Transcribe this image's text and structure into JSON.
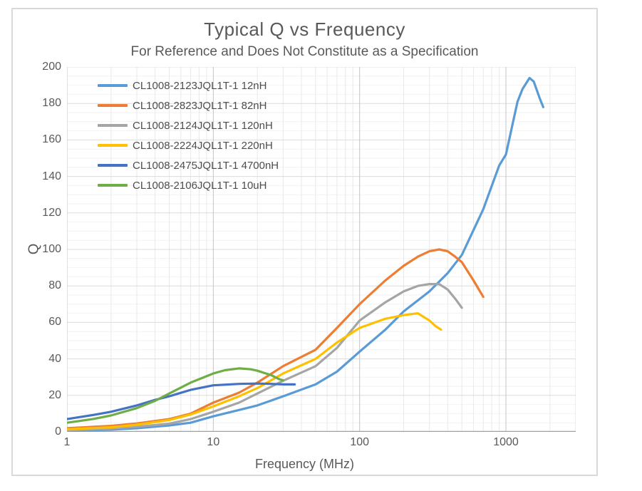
{
  "chart_data": {
    "type": "line",
    "title": "Typical Q vs Frequency",
    "subtitle": "For Reference and Does Not Constitute as a Specification",
    "xlabel": "Frequency (MHz)",
    "ylabel": "Q",
    "x_scale": "log",
    "xlim": [
      1,
      3000
    ],
    "ylim": [
      0,
      200
    ],
    "x_major_ticks": [
      1,
      10,
      100,
      1000
    ],
    "y_major_ticks": [
      0,
      20,
      40,
      60,
      80,
      100,
      120,
      140,
      160,
      180,
      200
    ],
    "y_minor_step": 5,
    "grid": true,
    "legend_position": "top-left",
    "axis_color": "#9f9f9f",
    "grid_major_h_color": "#dcdcdc",
    "grid_minor_h_color": "#f2f2f2",
    "grid_major_v_color": "#c4c4c4",
    "grid_minor_v_color": "#e9e9e9",
    "series": [
      {
        "name": "CL1008-2123JQL1T-1 12nH",
        "color": "#5B9BD5",
        "points": [
          [
            1,
            0.5
          ],
          [
            2,
            1.2
          ],
          [
            3,
            2
          ],
          [
            5,
            3.5
          ],
          [
            7,
            5
          ],
          [
            10,
            8.5
          ],
          [
            15,
            12
          ],
          [
            20,
            14.5
          ],
          [
            30,
            19.5
          ],
          [
            50,
            26
          ],
          [
            70,
            33
          ],
          [
            100,
            44
          ],
          [
            150,
            56
          ],
          [
            200,
            66
          ],
          [
            300,
            77
          ],
          [
            400,
            87
          ],
          [
            500,
            97
          ],
          [
            700,
            122
          ],
          [
            900,
            146
          ],
          [
            1000,
            152
          ],
          [
            1200,
            181
          ],
          [
            1300,
            188
          ],
          [
            1450,
            194
          ],
          [
            1550,
            192
          ],
          [
            1700,
            183
          ],
          [
            1800,
            178
          ]
        ]
      },
      {
        "name": "CL1008-2823JQL1T-1 82nH",
        "color": "#ED7D31",
        "points": [
          [
            1,
            2
          ],
          [
            2,
            3.3
          ],
          [
            3,
            4.6
          ],
          [
            5,
            7
          ],
          [
            7,
            10
          ],
          [
            10,
            16
          ],
          [
            15,
            21.5
          ],
          [
            20,
            27
          ],
          [
            30,
            36
          ],
          [
            50,
            45
          ],
          [
            70,
            57
          ],
          [
            100,
            70
          ],
          [
            150,
            83
          ],
          [
            200,
            91
          ],
          [
            250,
            96
          ],
          [
            300,
            99
          ],
          [
            350,
            100
          ],
          [
            400,
            99
          ],
          [
            450,
            96
          ],
          [
            500,
            93
          ],
          [
            600,
            83
          ],
          [
            700,
            74
          ]
        ]
      },
      {
        "name": "CL1008-2124JQL1T-1 120nH",
        "color": "#A5A5A5",
        "points": [
          [
            1,
            0.8
          ],
          [
            2,
            1.8
          ],
          [
            3,
            2.8
          ],
          [
            5,
            4.5
          ],
          [
            7,
            7
          ],
          [
            10,
            11
          ],
          [
            15,
            16
          ],
          [
            20,
            21
          ],
          [
            30,
            28
          ],
          [
            50,
            36
          ],
          [
            70,
            46
          ],
          [
            100,
            61
          ],
          [
            150,
            71
          ],
          [
            200,
            77
          ],
          [
            250,
            80
          ],
          [
            300,
            81
          ],
          [
            350,
            81
          ],
          [
            400,
            78
          ],
          [
            450,
            73
          ],
          [
            500,
            68
          ]
        ]
      },
      {
        "name": "CL1008-2224JQL1T-1 220nH",
        "color": "#FFC000",
        "points": [
          [
            1,
            1.4
          ],
          [
            2,
            2.5
          ],
          [
            3,
            3.9
          ],
          [
            5,
            6.5
          ],
          [
            7,
            9.5
          ],
          [
            10,
            14
          ],
          [
            15,
            19.5
          ],
          [
            20,
            24
          ],
          [
            30,
            32
          ],
          [
            50,
            40
          ],
          [
            70,
            49
          ],
          [
            100,
            57
          ],
          [
            150,
            62
          ],
          [
            200,
            64
          ],
          [
            250,
            65
          ],
          [
            300,
            61
          ],
          [
            330,
            58
          ],
          [
            360,
            56
          ]
        ]
      },
      {
        "name": "CL1008-2475JQL1T-1 4700nH",
        "color": "#4472C4",
        "points": [
          [
            1,
            7
          ],
          [
            1.5,
            9.2
          ],
          [
            2,
            11
          ],
          [
            3,
            14.5
          ],
          [
            4,
            17.5
          ],
          [
            5,
            19.5
          ],
          [
            7,
            23
          ],
          [
            10,
            25.5
          ],
          [
            15,
            26.3
          ],
          [
            20,
            26.5
          ],
          [
            25,
            26.3
          ],
          [
            30,
            26
          ],
          [
            36,
            26
          ]
        ]
      },
      {
        "name": "CL1008-2106JQL1T-1 10uH",
        "color": "#70AD47",
        "points": [
          [
            1,
            5
          ],
          [
            1.5,
            7
          ],
          [
            2,
            9
          ],
          [
            3,
            13
          ],
          [
            4,
            17
          ],
          [
            5,
            21
          ],
          [
            7,
            27
          ],
          [
            10,
            32
          ],
          [
            12,
            33.8
          ],
          [
            15,
            34.8
          ],
          [
            18,
            34.3
          ],
          [
            20,
            33.5
          ],
          [
            25,
            31
          ],
          [
            28,
            29
          ],
          [
            30,
            28.3
          ]
        ]
      }
    ]
  }
}
